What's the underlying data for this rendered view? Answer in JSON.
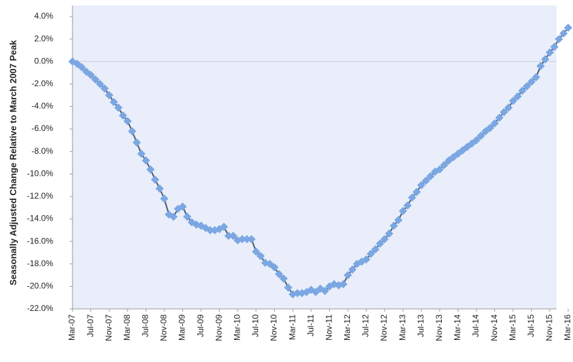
{
  "chart_data": {
    "type": "line",
    "y_label": "Seasonally Adjusted Change Relative to March 2007 Peak",
    "categories": [
      "Mar-07",
      null,
      null,
      null,
      "Jul-07",
      null,
      null,
      null,
      "Nov-07",
      null,
      null,
      null,
      "Mar-08",
      null,
      null,
      null,
      "Jul-08",
      null,
      null,
      null,
      "Nov-08",
      null,
      null,
      null,
      "Mar-09",
      null,
      null,
      null,
      "Jul-09",
      null,
      null,
      null,
      "Nov-09",
      null,
      null,
      null,
      "Mar-10",
      null,
      null,
      null,
      "Jul-10",
      null,
      null,
      null,
      "Nov-10",
      null,
      null,
      null,
      "Mar-11",
      null,
      null,
      null,
      "Jul-11",
      null,
      null,
      null,
      "Nov-11",
      null,
      null,
      null,
      "Mar-12",
      null,
      null,
      null,
      "Jul-12",
      null,
      null,
      null,
      "Nov-12",
      null,
      null,
      null,
      "Mar-13",
      null,
      null,
      null,
      "Jul-13",
      null,
      null,
      null,
      "Nov-13",
      null,
      null,
      null,
      "Mar-14",
      null,
      null,
      null,
      "Jul-14",
      null,
      null,
      null,
      "Nov-14",
      null,
      null,
      null,
      "Mar-15",
      null,
      null,
      null,
      "Jul-15",
      null,
      null,
      null,
      "Nov-15",
      null,
      null,
      null,
      "Mar-16"
    ],
    "series": [
      {
        "color": "#7ba7e2",
        "line_color": "#4d5b6e",
        "values": [
          0,
          -0.2,
          -0.5,
          -0.9,
          -1.2,
          -1.6,
          -2.0,
          -2.4,
          -3.0,
          -3.6,
          -4.1,
          -4.8,
          -5.3,
          -6.2,
          -7.2,
          -8.2,
          -8.8,
          -9.6,
          -10.5,
          -11.3,
          -12.2,
          -13.6,
          -13.8,
          -13.1,
          -12.9,
          -13.8,
          -14.3,
          -14.5,
          -14.6,
          -14.8,
          -15.0,
          -15.0,
          -14.9,
          -14.7,
          -15.5,
          -15.5,
          -15.9,
          -15.8,
          -15.8,
          -15.8,
          -16.9,
          -17.3,
          -17.9,
          -18.0,
          -18.3,
          -18.9,
          -19.3,
          -20.1,
          -20.7,
          -20.6,
          -20.6,
          -20.5,
          -20.3,
          -20.5,
          -20.2,
          -20.4,
          -20.0,
          -19.8,
          -19.9,
          -19.8,
          -19.0,
          -18.5,
          -18.0,
          -17.8,
          -17.6,
          -17.1,
          -16.7,
          -16.2,
          -15.8,
          -15.3,
          -14.6,
          -14.1,
          -13.3,
          -12.8,
          -12.1,
          -11.6,
          -11.0,
          -10.6,
          -10.2,
          -9.8,
          -9.6,
          -9.2,
          -8.8,
          -8.5,
          -8.2,
          -7.9,
          -7.6,
          -7.3,
          -7.0,
          -6.6,
          -6.2,
          -5.9,
          -5.5,
          -5.0,
          -4.5,
          -4.1,
          -3.5,
          -3.1,
          -2.6,
          -2.2,
          -1.8,
          -1.4,
          -0.4,
          0.2,
          0.8,
          1.3,
          2.0,
          2.5,
          3.0
        ]
      }
    ],
    "ylim": [
      -22,
      4
    ],
    "yticks": [
      {
        "value": 4,
        "label": "4.0%"
      },
      {
        "value": 2,
        "label": "2.0%"
      },
      {
        "value": 0,
        "label": "0.0%"
      },
      {
        "value": -2,
        "label": "-2.0%"
      },
      {
        "value": -4,
        "label": "-4.0%"
      },
      {
        "value": -6,
        "label": "-6.0%"
      },
      {
        "value": -8,
        "label": "-8.0%"
      },
      {
        "value": -10,
        "label": "-10.0%"
      },
      {
        "value": -12,
        "label": "-12.0%"
      },
      {
        "value": -14,
        "label": "-14.0%"
      },
      {
        "value": -16,
        "label": "-16.0%"
      },
      {
        "value": -18,
        "label": "-18.0%"
      },
      {
        "value": -20,
        "label": "-20.0%"
      },
      {
        "value": -22,
        "label": "-22.0%"
      }
    ],
    "plot_background": "#e9eefa"
  }
}
